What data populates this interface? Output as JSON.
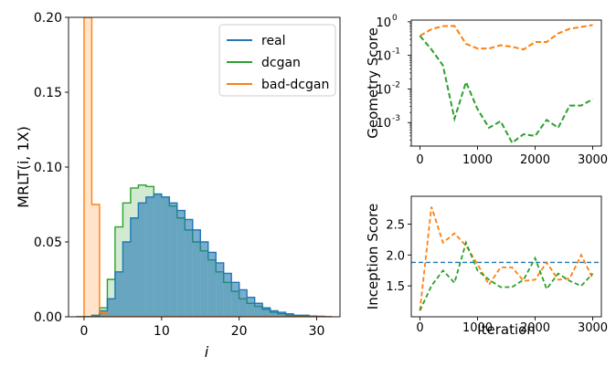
{
  "chart_data": [
    {
      "type": "histogram",
      "xlabel": "i",
      "ylabel": "MRLT(i, 1X)",
      "xlim": [
        -2,
        33
      ],
      "ylim": [
        0,
        0.2
      ],
      "x_ticks": [
        0,
        10,
        20,
        30
      ],
      "y_ticks": [
        0.0,
        0.05,
        0.1,
        0.15,
        0.2
      ],
      "x_tick_labels": [
        "0",
        "10",
        "20",
        "30"
      ],
      "y_tick_labels": [
        "0.00",
        "0.05",
        "0.10",
        "0.15",
        "0.20"
      ],
      "legend": {
        "position": "top-right"
      },
      "bin_width": 1,
      "bin_start": -1,
      "series": [
        {
          "name": "real",
          "color": "#1f77b4",
          "values": [
            0,
            0,
            0.001,
            0.004,
            0.012,
            0.03,
            0.05,
            0.066,
            0.076,
            0.08,
            0.082,
            0.08,
            0.076,
            0.071,
            0.065,
            0.058,
            0.05,
            0.043,
            0.036,
            0.029,
            0.023,
            0.018,
            0.013,
            0.009,
            0.006,
            0.004,
            0.003,
            0.002,
            0.001,
            0.001,
            0.0005,
            0.0003,
            0
          ]
        },
        {
          "name": "dcgan",
          "color": "#2ca02c",
          "values": [
            0,
            0,
            0,
            0.006,
            0.025,
            0.06,
            0.076,
            0.086,
            0.088,
            0.087,
            0.082,
            0.08,
            0.074,
            0.066,
            0.058,
            0.05,
            0.044,
            0.038,
            0.03,
            0.023,
            0.017,
            0.012,
            0.009,
            0.007,
            0.005,
            0.003,
            0.002,
            0.001,
            0.0007,
            0.0005,
            0.0003,
            0.0002,
            0
          ]
        },
        {
          "name": "bad-dcgan",
          "color": "#ff7f0e",
          "values": [
            0,
            0.2,
            0.075,
            0.003,
            0,
            0,
            0,
            0,
            0,
            0,
            0,
            0,
            0,
            0,
            0,
            0,
            0,
            0,
            0,
            0,
            0,
            0,
            0,
            0,
            0,
            0,
            0,
            0,
            0,
            0,
            0,
            0,
            0
          ]
        }
      ]
    },
    {
      "type": "line",
      "ylabel": "Geometry Score",
      "yscale": "log",
      "xlim": [
        -150,
        3150
      ],
      "ylim_log10": [
        -3.7,
        0.05
      ],
      "x_ticks": [
        0,
        1000,
        2000,
        3000
      ],
      "x_tick_labels": [
        "0",
        "1000",
        "2000",
        "3000"
      ],
      "y_ticks_log10": [
        -3,
        -2,
        -1,
        0
      ],
      "y_tick_labels": [
        "10",
        "10",
        "10",
        "10"
      ],
      "y_tick_exponents": [
        "-3",
        "-2",
        "-1",
        "0"
      ],
      "x": [
        0,
        200,
        400,
        600,
        800,
        1000,
        1200,
        1400,
        1600,
        1800,
        2000,
        2200,
        2400,
        2600,
        2800,
        3000
      ],
      "series": [
        {
          "color": "#ff7f0e",
          "style": "dashed",
          "values": [
            0.38,
            0.6,
            0.74,
            0.75,
            0.22,
            0.16,
            0.16,
            0.2,
            0.18,
            0.15,
            0.25,
            0.25,
            0.45,
            0.62,
            0.7,
            0.8
          ]
        },
        {
          "color": "#2ca02c",
          "style": "dashed",
          "values": [
            0.38,
            0.15,
            0.05,
            0.0013,
            0.016,
            0.0025,
            0.0007,
            0.0011,
            0.00025,
            0.00045,
            0.0004,
            0.0012,
            0.0007,
            0.0032,
            0.0032,
            0.005
          ]
        }
      ]
    },
    {
      "type": "line",
      "xlabel": "Iteration",
      "ylabel": "Inception Score",
      "xlim": [
        -150,
        3150
      ],
      "ylim": [
        1.0,
        2.95
      ],
      "x_ticks": [
        0,
        1000,
        2000,
        3000
      ],
      "x_tick_labels": [
        "0",
        "1000",
        "2000",
        "3000"
      ],
      "y_ticks": [
        1.5,
        2.0,
        2.5
      ],
      "y_tick_labels": [
        "1.5",
        "2.0",
        "2.5"
      ],
      "hline": {
        "y": 1.88,
        "color": "#1f77b4",
        "style": "dashed"
      },
      "x": [
        0,
        200,
        400,
        600,
        800,
        1000,
        1200,
        1400,
        1600,
        1800,
        2000,
        2200,
        2400,
        2600,
        2800,
        3000
      ],
      "series": [
        {
          "color": "#ff7f0e",
          "style": "dashed",
          "values": [
            1.1,
            2.78,
            2.2,
            2.35,
            2.15,
            1.85,
            1.52,
            1.8,
            1.8,
            1.58,
            1.6,
            1.88,
            1.6,
            1.62,
            2.0,
            1.62
          ]
        },
        {
          "color": "#2ca02c",
          "style": "dashed",
          "values": [
            1.1,
            1.5,
            1.75,
            1.55,
            2.2,
            1.75,
            1.6,
            1.48,
            1.48,
            1.6,
            1.95,
            1.45,
            1.7,
            1.58,
            1.5,
            1.7
          ]
        }
      ]
    }
  ]
}
